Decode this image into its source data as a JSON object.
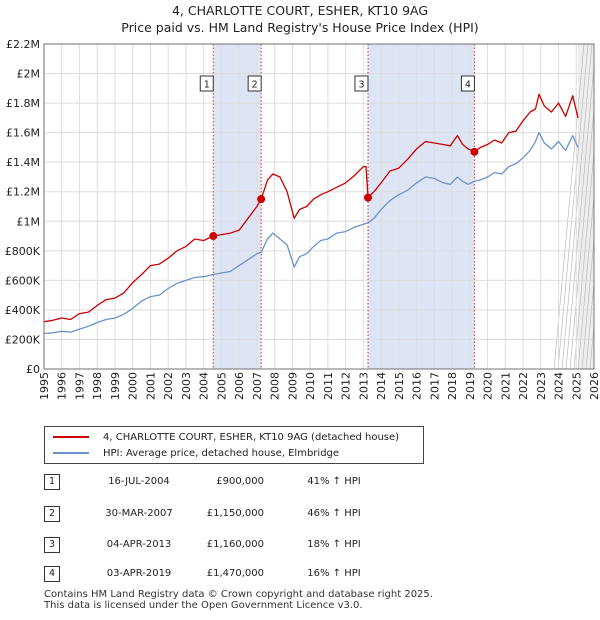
{
  "title_line1": "4, CHARLOTTE COURT, ESHER, KT10 9AG",
  "title_line2": "Price paid vs. HM Land Registry's House Price Index (HPI)",
  "legend": {
    "property_label": "4, CHARLOTTE COURT, ESHER, KT10 9AG (detached house)",
    "hpi_label": "HPI: Average price, detached house, Elmbridge"
  },
  "transactions": [
    {
      "num": "1",
      "date": "16-JUL-2004",
      "price": "£900,000",
      "hpi": "41% ↑ HPI"
    },
    {
      "num": "2",
      "date": "30-MAR-2007",
      "price": "£1,150,000",
      "hpi": "46% ↑ HPI"
    },
    {
      "num": "3",
      "date": "04-APR-2013",
      "price": "£1,160,000",
      "hpi": "18% ↑ HPI"
    },
    {
      "num": "4",
      "date": "03-APR-2019",
      "price": "£1,470,000",
      "hpi": "16% ↑ HPI"
    }
  ],
  "footer": "Contains HM Land Registry data © Crown copyright and database right 2025.\nThis data is licensed under the Open Government Licence v3.0.",
  "colors": {
    "property": "#cc0000",
    "hpi": "#6b93c8",
    "shade": "#dde5f5",
    "grid": "#dddddd",
    "vline": "#dd3333"
  },
  "chart_data": {
    "type": "line",
    "xlim": [
      1995,
      2026
    ],
    "ylim": [
      0,
      2200000
    ],
    "x_ticks": [
      "1995",
      "1996",
      "1997",
      "1998",
      "1999",
      "2000",
      "2001",
      "2002",
      "2003",
      "2004",
      "2005",
      "2006",
      "2007",
      "2008",
      "2009",
      "2010",
      "2011",
      "2012",
      "2013",
      "2014",
      "2015",
      "2016",
      "2017",
      "2018",
      "2019",
      "2020",
      "2021",
      "2022",
      "2023",
      "2024",
      "2025",
      "2026"
    ],
    "y_ticks": [
      {
        "value": 0,
        "label": "£0"
      },
      {
        "value": 200000,
        "label": "£200K"
      },
      {
        "value": 400000,
        "label": "£400K"
      },
      {
        "value": 600000,
        "label": "£600K"
      },
      {
        "value": 800000,
        "label": "£800K"
      },
      {
        "value": 1000000,
        "label": "£1M"
      },
      {
        "value": 1200000,
        "label": "£1.2M"
      },
      {
        "value": 1400000,
        "label": "£1.4M"
      },
      {
        "value": 1600000,
        "label": "£1.6M"
      },
      {
        "value": 1800000,
        "label": "£1.8M"
      },
      {
        "value": 2000000,
        "label": "£2M"
      },
      {
        "value": 2200000,
        "label": "£2.2M"
      }
    ],
    "shaded_spans": [
      [
        2004.54,
        2007.24
      ],
      [
        2013.26,
        2019.26
      ]
    ],
    "future_from": 2025.1,
    "sale_markers": [
      {
        "label": "1",
        "x": 2004.54,
        "y": 900000
      },
      {
        "label": "2",
        "x": 2007.24,
        "y": 1150000
      },
      {
        "label": "3",
        "x": 2013.26,
        "y": 1160000
      },
      {
        "label": "4",
        "x": 2019.26,
        "y": 1470000
      }
    ],
    "series": [
      {
        "name": "4, CHARLOTTE COURT, ESHER, KT10 9AG (detached house)",
        "color": "#cc0000",
        "points": [
          [
            1995.0,
            320000
          ],
          [
            1995.5,
            330000
          ],
          [
            1996.0,
            345000
          ],
          [
            1996.5,
            335000
          ],
          [
            1997.0,
            375000
          ],
          [
            1997.5,
            385000
          ],
          [
            1998.0,
            430000
          ],
          [
            1998.5,
            470000
          ],
          [
            1999.0,
            480000
          ],
          [
            1999.5,
            515000
          ],
          [
            2000.0,
            585000
          ],
          [
            2000.5,
            640000
          ],
          [
            2001.0,
            700000
          ],
          [
            2001.5,
            710000
          ],
          [
            2002.0,
            750000
          ],
          [
            2002.5,
            800000
          ],
          [
            2003.0,
            830000
          ],
          [
            2003.5,
            880000
          ],
          [
            2004.0,
            870000
          ],
          [
            2004.54,
            900000
          ],
          [
            2005.0,
            910000
          ],
          [
            2005.5,
            920000
          ],
          [
            2006.0,
            940000
          ],
          [
            2006.5,
            1020000
          ],
          [
            2007.0,
            1100000
          ],
          [
            2007.24,
            1150000
          ],
          [
            2007.6,
            1280000
          ],
          [
            2007.9,
            1320000
          ],
          [
            2008.3,
            1300000
          ],
          [
            2008.7,
            1200000
          ],
          [
            2009.1,
            1020000
          ],
          [
            2009.4,
            1080000
          ],
          [
            2009.8,
            1100000
          ],
          [
            2010.2,
            1150000
          ],
          [
            2010.6,
            1180000
          ],
          [
            2011.0,
            1200000
          ],
          [
            2011.5,
            1230000
          ],
          [
            2012.0,
            1260000
          ],
          [
            2012.5,
            1310000
          ],
          [
            2013.0,
            1370000
          ],
          [
            2013.15,
            1370000
          ],
          [
            2013.26,
            1160000
          ],
          [
            2013.6,
            1200000
          ],
          [
            2014.0,
            1260000
          ],
          [
            2014.5,
            1340000
          ],
          [
            2015.0,
            1360000
          ],
          [
            2015.5,
            1420000
          ],
          [
            2016.0,
            1490000
          ],
          [
            2016.5,
            1540000
          ],
          [
            2017.0,
            1530000
          ],
          [
            2017.5,
            1520000
          ],
          [
            2017.9,
            1510000
          ],
          [
            2018.3,
            1580000
          ],
          [
            2018.6,
            1520000
          ],
          [
            2018.9,
            1490000
          ],
          [
            2019.26,
            1470000
          ],
          [
            2019.6,
            1500000
          ],
          [
            2020.0,
            1520000
          ],
          [
            2020.4,
            1550000
          ],
          [
            2020.8,
            1530000
          ],
          [
            2021.2,
            1600000
          ],
          [
            2021.6,
            1610000
          ],
          [
            2022.0,
            1680000
          ],
          [
            2022.4,
            1740000
          ],
          [
            2022.7,
            1760000
          ],
          [
            2022.9,
            1860000
          ],
          [
            2023.2,
            1780000
          ],
          [
            2023.6,
            1740000
          ],
          [
            2024.0,
            1800000
          ],
          [
            2024.4,
            1710000
          ],
          [
            2024.8,
            1850000
          ],
          [
            2025.1,
            1700000
          ]
        ]
      },
      {
        "name": "HPI: Average price, detached house, Elmbridge",
        "color": "#6b93c8",
        "points": [
          [
            1995.0,
            240000
          ],
          [
            1995.5,
            245000
          ],
          [
            1996.0,
            255000
          ],
          [
            1996.5,
            250000
          ],
          [
            1997.0,
            270000
          ],
          [
            1997.5,
            290000
          ],
          [
            1998.0,
            315000
          ],
          [
            1998.5,
            335000
          ],
          [
            1999.0,
            345000
          ],
          [
            1999.5,
            370000
          ],
          [
            2000.0,
            410000
          ],
          [
            2000.5,
            460000
          ],
          [
            2001.0,
            490000
          ],
          [
            2001.5,
            500000
          ],
          [
            2002.0,
            545000
          ],
          [
            2002.5,
            580000
          ],
          [
            2003.0,
            600000
          ],
          [
            2003.5,
            620000
          ],
          [
            2004.0,
            625000
          ],
          [
            2004.54,
            640000
          ],
          [
            2005.0,
            650000
          ],
          [
            2005.5,
            660000
          ],
          [
            2006.0,
            700000
          ],
          [
            2006.5,
            740000
          ],
          [
            2007.0,
            780000
          ],
          [
            2007.24,
            790000
          ],
          [
            2007.6,
            880000
          ],
          [
            2007.9,
            920000
          ],
          [
            2008.3,
            880000
          ],
          [
            2008.7,
            840000
          ],
          [
            2009.1,
            690000
          ],
          [
            2009.4,
            760000
          ],
          [
            2009.8,
            780000
          ],
          [
            2010.2,
            830000
          ],
          [
            2010.6,
            870000
          ],
          [
            2011.0,
            880000
          ],
          [
            2011.5,
            920000
          ],
          [
            2012.0,
            930000
          ],
          [
            2012.5,
            960000
          ],
          [
            2013.0,
            980000
          ],
          [
            2013.26,
            990000
          ],
          [
            2013.6,
            1020000
          ],
          [
            2014.0,
            1080000
          ],
          [
            2014.5,
            1140000
          ],
          [
            2015.0,
            1180000
          ],
          [
            2015.5,
            1210000
          ],
          [
            2016.0,
            1260000
          ],
          [
            2016.5,
            1300000
          ],
          [
            2017.0,
            1290000
          ],
          [
            2017.5,
            1260000
          ],
          [
            2017.9,
            1250000
          ],
          [
            2018.3,
            1300000
          ],
          [
            2018.6,
            1270000
          ],
          [
            2018.9,
            1250000
          ],
          [
            2019.26,
            1270000
          ],
          [
            2019.6,
            1280000
          ],
          [
            2020.0,
            1300000
          ],
          [
            2020.4,
            1330000
          ],
          [
            2020.8,
            1320000
          ],
          [
            2021.2,
            1370000
          ],
          [
            2021.6,
            1390000
          ],
          [
            2022.0,
            1430000
          ],
          [
            2022.4,
            1480000
          ],
          [
            2022.7,
            1540000
          ],
          [
            2022.9,
            1600000
          ],
          [
            2023.2,
            1530000
          ],
          [
            2023.6,
            1490000
          ],
          [
            2024.0,
            1540000
          ],
          [
            2024.4,
            1480000
          ],
          [
            2024.8,
            1580000
          ],
          [
            2025.1,
            1500000
          ]
        ]
      }
    ]
  }
}
